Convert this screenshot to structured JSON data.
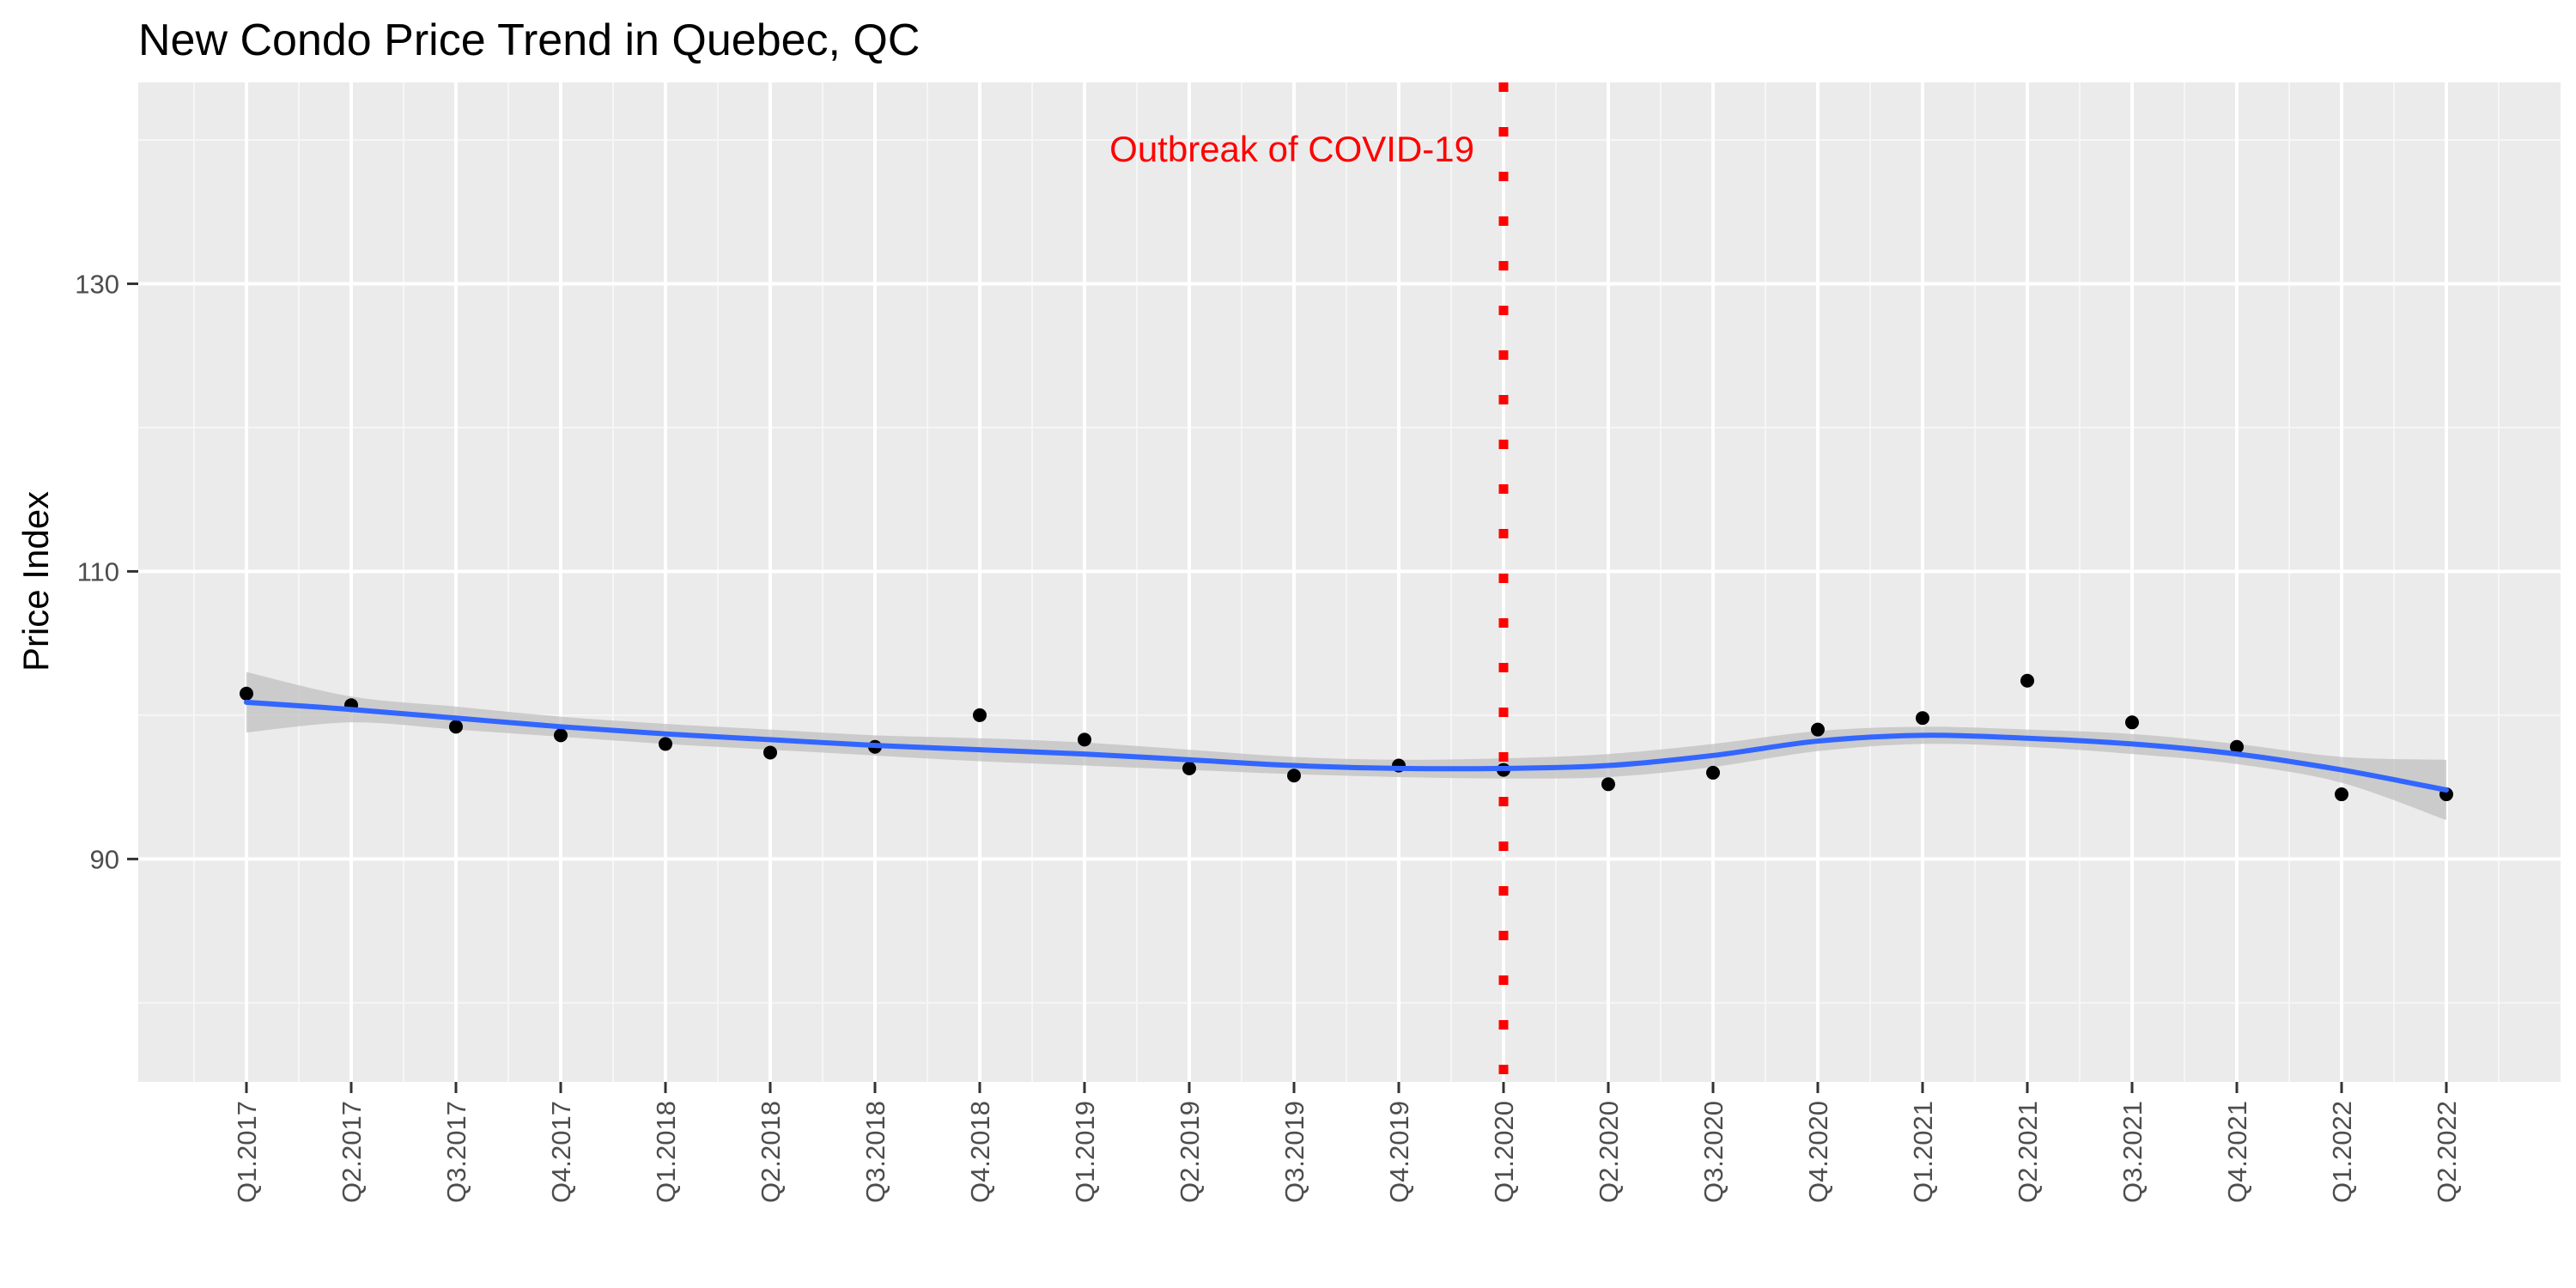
{
  "chart_data": {
    "type": "scatter",
    "title": "New Condo Price Trend in Quebec, QC",
    "xlabel": "",
    "ylabel": "Price Index",
    "categories": [
      "Q1.2017",
      "Q2.2017",
      "Q3.2017",
      "Q4.2017",
      "Q1.2018",
      "Q2.2018",
      "Q3.2018",
      "Q4.2018",
      "Q1.2019",
      "Q2.2019",
      "Q3.2019",
      "Q4.2019",
      "Q1.2020",
      "Q2.2020",
      "Q3.2020",
      "Q4.2020",
      "Q1.2021",
      "Q2.2021",
      "Q3.2021",
      "Q4.2021",
      "Q1.2022",
      "Q2.2022"
    ],
    "values": [
      101.5,
      100.7,
      99.2,
      98.6,
      98.0,
      97.4,
      97.8,
      100.0,
      98.3,
      96.3,
      95.8,
      96.5,
      96.2,
      95.2,
      96.0,
      99.0,
      99.8,
      102.4,
      99.5,
      97.8,
      94.5,
      94.5
    ],
    "trend": {
      "smooth": [
        100.9,
        100.4,
        99.8,
        99.2,
        98.7,
        98.3,
        97.9,
        97.6,
        97.3,
        96.9,
        96.5,
        96.3,
        96.3,
        96.5,
        97.2,
        98.2,
        98.6,
        98.4,
        98.0,
        97.3,
        96.2,
        94.8
      ],
      "ci_low": [
        98.8,
        99.5,
        99.0,
        98.5,
        98.0,
        97.6,
        97.2,
        96.8,
        96.5,
        96.2,
        95.9,
        95.7,
        95.6,
        95.7,
        96.4,
        97.5,
        98.0,
        97.8,
        97.3,
        96.6,
        95.3,
        92.7
      ],
      "ci_high": [
        103.0,
        101.3,
        100.6,
        99.9,
        99.4,
        99.0,
        98.6,
        98.4,
        98.1,
        97.6,
        97.1,
        96.9,
        97.0,
        97.3,
        98.0,
        98.9,
        99.2,
        99.0,
        98.7,
        98.0,
        97.1,
        96.9
      ]
    },
    "ylim": [
      74.5,
      144
    ],
    "y_ticks": [
      90,
      110,
      130
    ],
    "grid": true,
    "annotation": {
      "text": "Outbreak of COVID-19",
      "x_category": "Q1.2020",
      "y": 139.4,
      "color": "#FF0000"
    }
  },
  "colors": {
    "panel_bg": "#EBEBEB",
    "grid_major": "#FFFFFF",
    "grid_minor": "#F6F6F6",
    "points": "#000000",
    "smooth_line": "#3366FF",
    "ci_band": "#BDBDBD",
    "vline": "#FF0000"
  }
}
